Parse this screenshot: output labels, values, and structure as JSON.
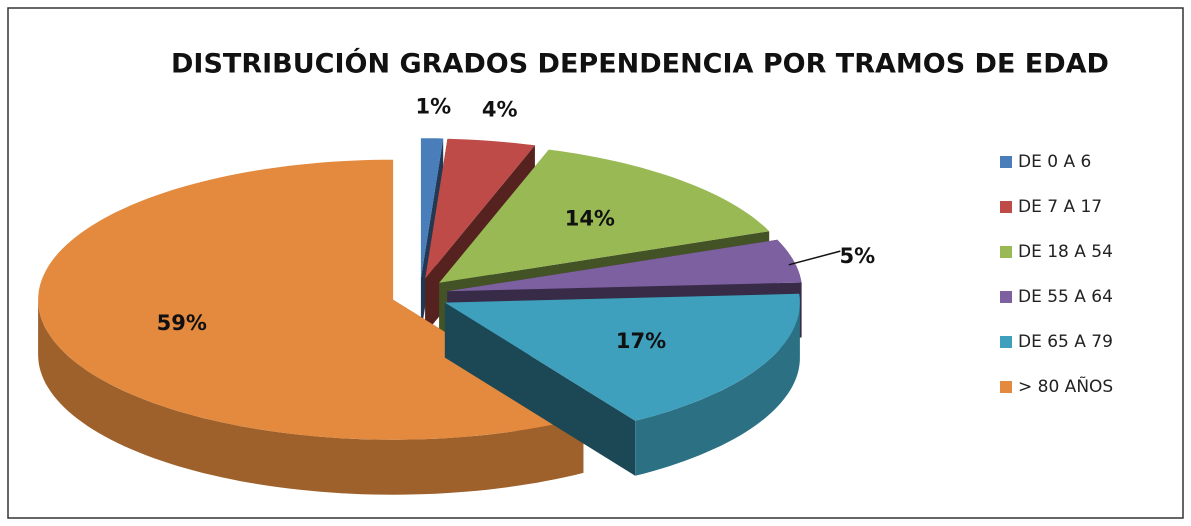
{
  "chart_data": {
    "type": "pie",
    "title": "DISTRIBUCIÓN GRADOS DEPENDENCIA POR TRAMOS DE EDAD",
    "categories": [
      "DE 0 A 6",
      "DE 7 A 17",
      "DE 18 A 54",
      "DE 55 A 64",
      "DE 65 A 79",
      "> 80 AÑOS"
    ],
    "values": [
      1,
      4,
      14,
      5,
      17,
      59
    ],
    "value_labels": [
      "1%",
      "4%",
      "14%",
      "5%",
      "17%",
      "59%"
    ],
    "colors": [
      "#4a7ebb",
      "#be4b48",
      "#98b954",
      "#7d60a0",
      "#3fa0bd",
      "#e38a3e"
    ],
    "legend": "right"
  }
}
